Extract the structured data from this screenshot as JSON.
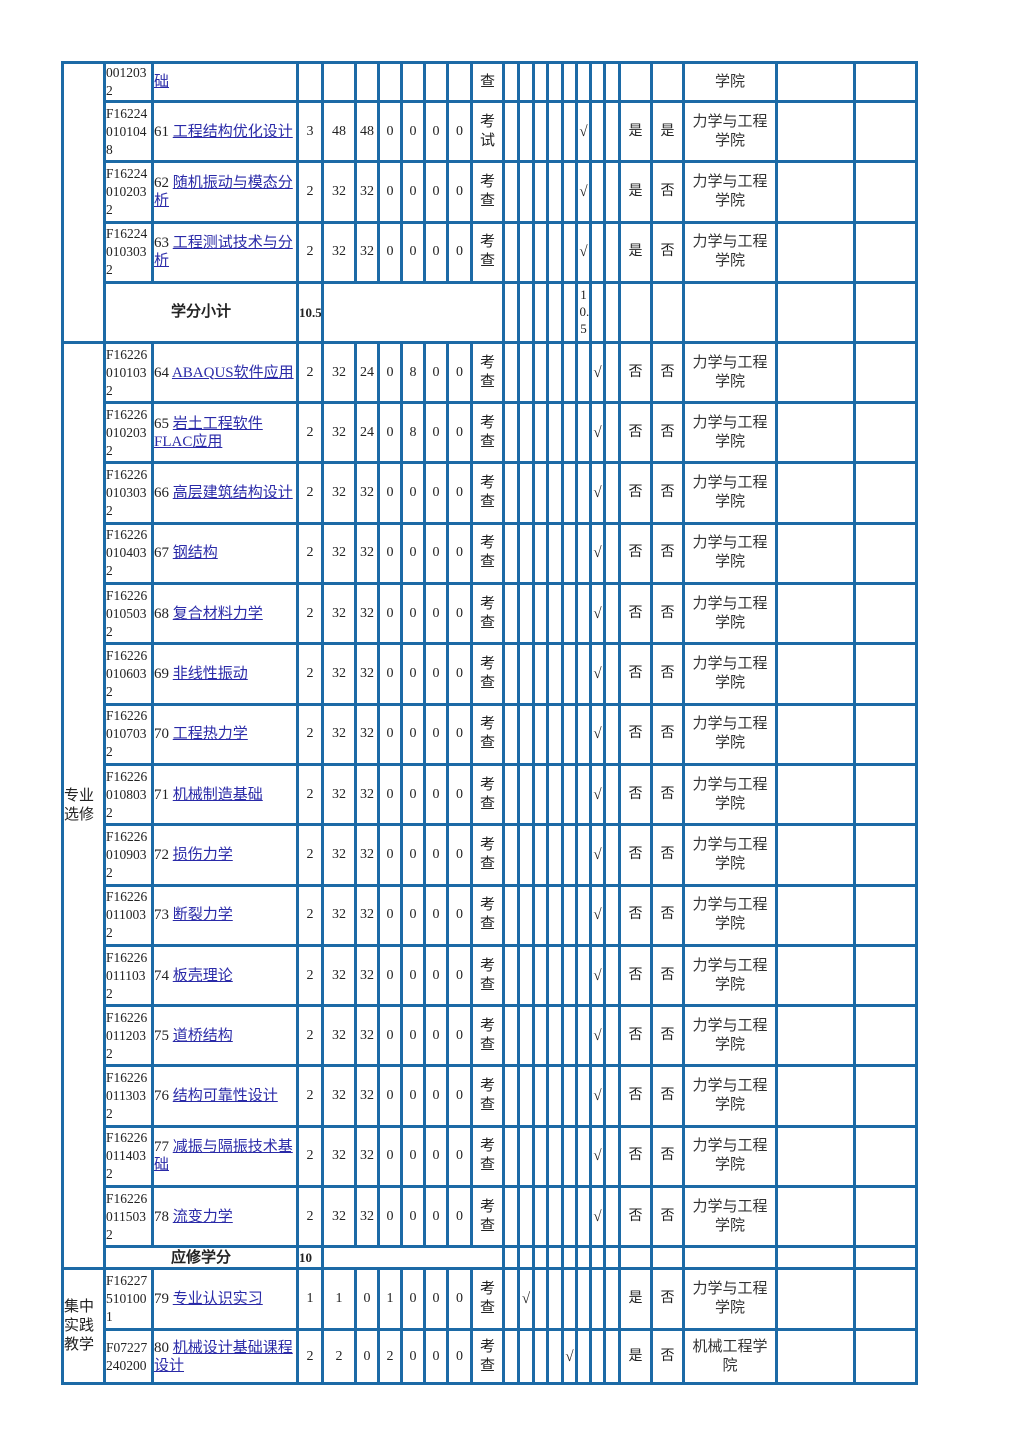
{
  "check_mark": "√",
  "border_color": "#1c6aa6",
  "link_color": "#2a2aa8",
  "section1": {
    "category": "",
    "rows": [
      {
        "code": "0012032",
        "num": "",
        "name": "础",
        "credits": "",
        "hours": "",
        "lecture": "",
        "c1": "",
        "c2": "",
        "c3": "",
        "c4": "",
        "exam": "查",
        "semester": 0,
        "req": "",
        "deg": "",
        "college": "学院"
      },
      {
        "code": "F162240101048",
        "num": "61",
        "name": "工程结构优化设计",
        "credits": "3",
        "hours": "48",
        "lecture": "48",
        "c1": "0",
        "c2": "0",
        "c3": "0",
        "c4": "0",
        "exam": "考试",
        "semester": 6,
        "req": "是",
        "deg": "是",
        "college": "力学与工程学院"
      },
      {
        "code": "F162240102032",
        "num": "62",
        "name": "随机振动与模态分析",
        "credits": "2",
        "hours": "32",
        "lecture": "32",
        "c1": "0",
        "c2": "0",
        "c3": "0",
        "c4": "0",
        "exam": "考查",
        "semester": 6,
        "req": "是",
        "deg": "否",
        "college": "力学与工程学院"
      },
      {
        "code": "F162240103032",
        "num": "63",
        "name": "工程测试技术与分析",
        "credits": "2",
        "hours": "32",
        "lecture": "32",
        "c1": "0",
        "c2": "0",
        "c3": "0",
        "c4": "0",
        "exam": "考查",
        "semester": 6,
        "req": "是",
        "deg": "否",
        "college": "力学与工程学院"
      }
    ],
    "subtotal": {
      "label": "学分小计",
      "credits": "10.5",
      "semester": 6,
      "semester_value": "10.5"
    }
  },
  "section2": {
    "category": "专业选修",
    "rows": [
      {
        "code": "F162260101032",
        "num": "64",
        "name": "ABAQUS软件应用",
        "credits": "2",
        "hours": "32",
        "lecture": "24",
        "c1": "0",
        "c2": "8",
        "c3": "0",
        "c4": "0",
        "exam": "考查",
        "semester": 7,
        "req": "否",
        "deg": "否",
        "college": "力学与工程学院"
      },
      {
        "code": "F162260102032",
        "num": "65",
        "name": "岩土工程软件FLAC应用",
        "credits": "2",
        "hours": "32",
        "lecture": "24",
        "c1": "0",
        "c2": "8",
        "c3": "0",
        "c4": "0",
        "exam": "考查",
        "semester": 7,
        "req": "否",
        "deg": "否",
        "college": "力学与工程学院"
      },
      {
        "code": "F162260103032",
        "num": "66",
        "name": "高层建筑结构设计",
        "credits": "2",
        "hours": "32",
        "lecture": "32",
        "c1": "0",
        "c2": "0",
        "c3": "0",
        "c4": "0",
        "exam": "考查",
        "semester": 7,
        "req": "否",
        "deg": "否",
        "college": "力学与工程学院"
      },
      {
        "code": "F162260104032",
        "num": "67",
        "name": "钢结构",
        "credits": "2",
        "hours": "32",
        "lecture": "32",
        "c1": "0",
        "c2": "0",
        "c3": "0",
        "c4": "0",
        "exam": "考查",
        "semester": 7,
        "req": "否",
        "deg": "否",
        "college": "力学与工程学院"
      },
      {
        "code": "F162260105032",
        "num": "68",
        "name": "复合材料力学",
        "credits": "2",
        "hours": "32",
        "lecture": "32",
        "c1": "0",
        "c2": "0",
        "c3": "0",
        "c4": "0",
        "exam": "考查",
        "semester": 7,
        "req": "否",
        "deg": "否",
        "college": "力学与工程学院"
      },
      {
        "code": "F162260106032",
        "num": "69",
        "name": "非线性振动",
        "credits": "2",
        "hours": "32",
        "lecture": "32",
        "c1": "0",
        "c2": "0",
        "c3": "0",
        "c4": "0",
        "exam": "考查",
        "semester": 7,
        "req": "否",
        "deg": "否",
        "college": "力学与工程学院"
      },
      {
        "code": "F162260107032",
        "num": "70",
        "name": "工程热力学",
        "credits": "2",
        "hours": "32",
        "lecture": "32",
        "c1": "0",
        "c2": "0",
        "c3": "0",
        "c4": "0",
        "exam": "考查",
        "semester": 7,
        "req": "否",
        "deg": "否",
        "college": "力学与工程学院"
      },
      {
        "code": "F162260108032",
        "num": "71",
        "name": "机械制造基础",
        "credits": "2",
        "hours": "32",
        "lecture": "32",
        "c1": "0",
        "c2": "0",
        "c3": "0",
        "c4": "0",
        "exam": "考查",
        "semester": 7,
        "req": "否",
        "deg": "否",
        "college": "力学与工程学院"
      },
      {
        "code": "F162260109032",
        "num": "72",
        "name": "损伤力学",
        "credits": "2",
        "hours": "32",
        "lecture": "32",
        "c1": "0",
        "c2": "0",
        "c3": "0",
        "c4": "0",
        "exam": "考查",
        "semester": 7,
        "req": "否",
        "deg": "否",
        "college": "力学与工程学院"
      },
      {
        "code": "F162260110032",
        "num": "73",
        "name": "断裂力学",
        "credits": "2",
        "hours": "32",
        "lecture": "32",
        "c1": "0",
        "c2": "0",
        "c3": "0",
        "c4": "0",
        "exam": "考查",
        "semester": 7,
        "req": "否",
        "deg": "否",
        "college": "力学与工程学院"
      },
      {
        "code": "F162260111032",
        "num": "74",
        "name": "板壳理论",
        "credits": "2",
        "hours": "32",
        "lecture": "32",
        "c1": "0",
        "c2": "0",
        "c3": "0",
        "c4": "0",
        "exam": "考查",
        "semester": 7,
        "req": "否",
        "deg": "否",
        "college": "力学与工程学院"
      },
      {
        "code": "F162260112032",
        "num": "75",
        "name": "道桥结构",
        "credits": "2",
        "hours": "32",
        "lecture": "32",
        "c1": "0",
        "c2": "0",
        "c3": "0",
        "c4": "0",
        "exam": "考查",
        "semester": 7,
        "req": "否",
        "deg": "否",
        "college": "力学与工程学院"
      },
      {
        "code": "F162260113032",
        "num": "76",
        "name": "结构可靠性设计",
        "credits": "2",
        "hours": "32",
        "lecture": "32",
        "c1": "0",
        "c2": "0",
        "c3": "0",
        "c4": "0",
        "exam": "考查",
        "semester": 7,
        "req": "否",
        "deg": "否",
        "college": "力学与工程学院"
      },
      {
        "code": "F162260114032",
        "num": "77",
        "name": "减振与隔振技术基础",
        "credits": "2",
        "hours": "32",
        "lecture": "32",
        "c1": "0",
        "c2": "0",
        "c3": "0",
        "c4": "0",
        "exam": "考查",
        "semester": 7,
        "req": "否",
        "deg": "否",
        "college": "力学与工程学院"
      },
      {
        "code": "F162260115032",
        "num": "78",
        "name": "流变力学",
        "credits": "2",
        "hours": "32",
        "lecture": "32",
        "c1": "0",
        "c2": "0",
        "c3": "0",
        "c4": "0",
        "exam": "考查",
        "semester": 7,
        "req": "否",
        "deg": "否",
        "college": "力学与工程学院"
      }
    ],
    "subtotal": {
      "label": "应修学分",
      "credits": "10",
      "semester": 0,
      "semester_value": ""
    }
  },
  "section3": {
    "category": "集中实践教学",
    "rows": [
      {
        "code": "F162275101001",
        "num": "79",
        "name": "专业认识实习",
        "credits": "1",
        "hours": "1",
        "lecture": "0",
        "c1": "1",
        "c2": "0",
        "c3": "0",
        "c4": "0",
        "exam": "考查",
        "semester": 2,
        "req": "是",
        "deg": "否",
        "college": "力学与工程学院"
      },
      {
        "code": "F07227240200",
        "num": "80",
        "name": "机械设计基础课程设计",
        "credits": "2",
        "hours": "2",
        "lecture": "0",
        "c1": "2",
        "c2": "0",
        "c3": "0",
        "c4": "0",
        "exam": "考查",
        "semester": 5,
        "req": "是",
        "deg": "否",
        "college": "机械工程学院"
      }
    ]
  }
}
